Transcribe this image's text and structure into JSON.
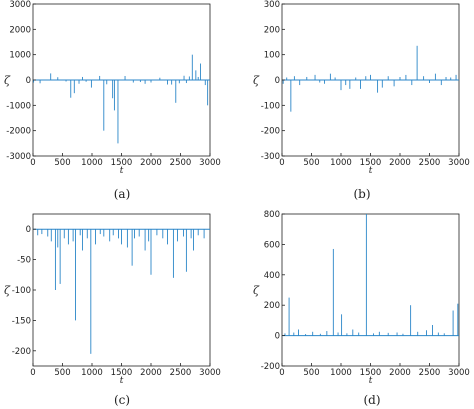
{
  "chart_data": [
    {
      "type": "line",
      "caption": "(a)",
      "xlabel": "t",
      "ylabel": "ζ",
      "xlim": [
        0,
        3000
      ],
      "ylim": [
        -3000,
        3000
      ],
      "xticks": [
        0,
        500,
        1000,
        1500,
        2000,
        2500,
        3000
      ],
      "yticks": [
        3000,
        2000,
        1000,
        0,
        -1000,
        -2000,
        -3000
      ],
      "x": [
        10,
        120,
        300,
        420,
        560,
        640,
        700,
        780,
        840,
        900,
        990,
        1130,
        1200,
        1250,
        1350,
        1380,
        1440,
        1560,
        1700,
        1820,
        1900,
        2000,
        2150,
        2280,
        2350,
        2420,
        2480,
        2560,
        2600,
        2650,
        2700,
        2760,
        2800,
        2840,
        2920,
        2960
      ],
      "y": [
        -100,
        -130,
        260,
        110,
        -60,
        -700,
        -520,
        -150,
        120,
        -70,
        -300,
        160,
        -2000,
        -170,
        -720,
        -1200,
        -2500,
        160,
        -100,
        -80,
        -150,
        -100,
        90,
        -180,
        -180,
        -900,
        -130,
        170,
        -120,
        140,
        1000,
        380,
        120,
        650,
        -200,
        -1000
      ]
    },
    {
      "type": "line",
      "caption": "(b)",
      "xlabel": "t",
      "ylabel": "ζ",
      "xlim": [
        0,
        3000
      ],
      "ylim": [
        -300,
        300
      ],
      "xticks": [
        0,
        500,
        1000,
        1500,
        2000,
        2500,
        3000
      ],
      "yticks": [
        300,
        200,
        100,
        0,
        -100,
        -200,
        -300
      ],
      "x": [
        20,
        80,
        150,
        210,
        300,
        420,
        560,
        640,
        720,
        820,
        900,
        1000,
        1080,
        1150,
        1250,
        1330,
        1420,
        1500,
        1620,
        1700,
        1800,
        1900,
        2000,
        2100,
        2200,
        2290,
        2400,
        2500,
        2600,
        2700,
        2780,
        2860,
        2950
      ],
      "y": [
        -15,
        10,
        -125,
        15,
        -20,
        12,
        20,
        -10,
        -15,
        25,
        10,
        -40,
        -20,
        -35,
        10,
        -35,
        15,
        20,
        -50,
        -30,
        15,
        -25,
        12,
        20,
        -20,
        135,
        15,
        -12,
        25,
        -20,
        12,
        10,
        20
      ]
    },
    {
      "type": "line",
      "caption": "(c)",
      "xlabel": "t",
      "ylabel": "ζ",
      "xlim": [
        0,
        3000
      ],
      "ylim": [
        -225,
        25
      ],
      "xticks": [
        0,
        500,
        1000,
        1500,
        2000,
        2500,
        3000
      ],
      "yticks": [
        0,
        -50,
        -100,
        -150,
        -200
      ],
      "x": [
        80,
        150,
        250,
        310,
        380,
        420,
        460,
        530,
        600,
        680,
        720,
        800,
        840,
        920,
        980,
        1060,
        1140,
        1200,
        1300,
        1360,
        1450,
        1500,
        1600,
        1680,
        1720,
        1800,
        1900,
        1960,
        2000,
        2100,
        2200,
        2280,
        2380,
        2450,
        2550,
        2600,
        2680,
        2720,
        2800,
        2900
      ],
      "y": [
        -10,
        -8,
        -12,
        -20,
        -100,
        -30,
        -90,
        -15,
        -25,
        -20,
        -150,
        -10,
        -35,
        -15,
        -205,
        -25,
        -8,
        -12,
        -20,
        -10,
        -15,
        -25,
        -30,
        -60,
        -15,
        -12,
        -35,
        -20,
        -75,
        -10,
        -15,
        -25,
        -80,
        -20,
        -12,
        -70,
        -15,
        -35,
        -10,
        -15
      ]
    },
    {
      "type": "line",
      "caption": "(d)",
      "xlabel": "t",
      "ylabel": "ζ",
      "xlim": [
        0,
        3000
      ],
      "ylim": [
        -200,
        800
      ],
      "xticks": [
        0,
        500,
        1000,
        1500,
        2000,
        2500,
        3000
      ],
      "yticks": [
        800,
        600,
        400,
        200,
        0,
        -200
      ],
      "x": [
        50,
        120,
        200,
        280,
        400,
        520,
        650,
        760,
        870,
        950,
        1010,
        1100,
        1200,
        1300,
        1430,
        1550,
        1650,
        1800,
        1950,
        2050,
        2180,
        2300,
        2450,
        2550,
        2650,
        2750,
        2900,
        2980
      ],
      "y": [
        15,
        250,
        20,
        40,
        10,
        25,
        12,
        30,
        570,
        20,
        140,
        15,
        40,
        20,
        800,
        15,
        25,
        18,
        20,
        12,
        200,
        25,
        35,
        70,
        20,
        15,
        165,
        210
      ]
    }
  ]
}
